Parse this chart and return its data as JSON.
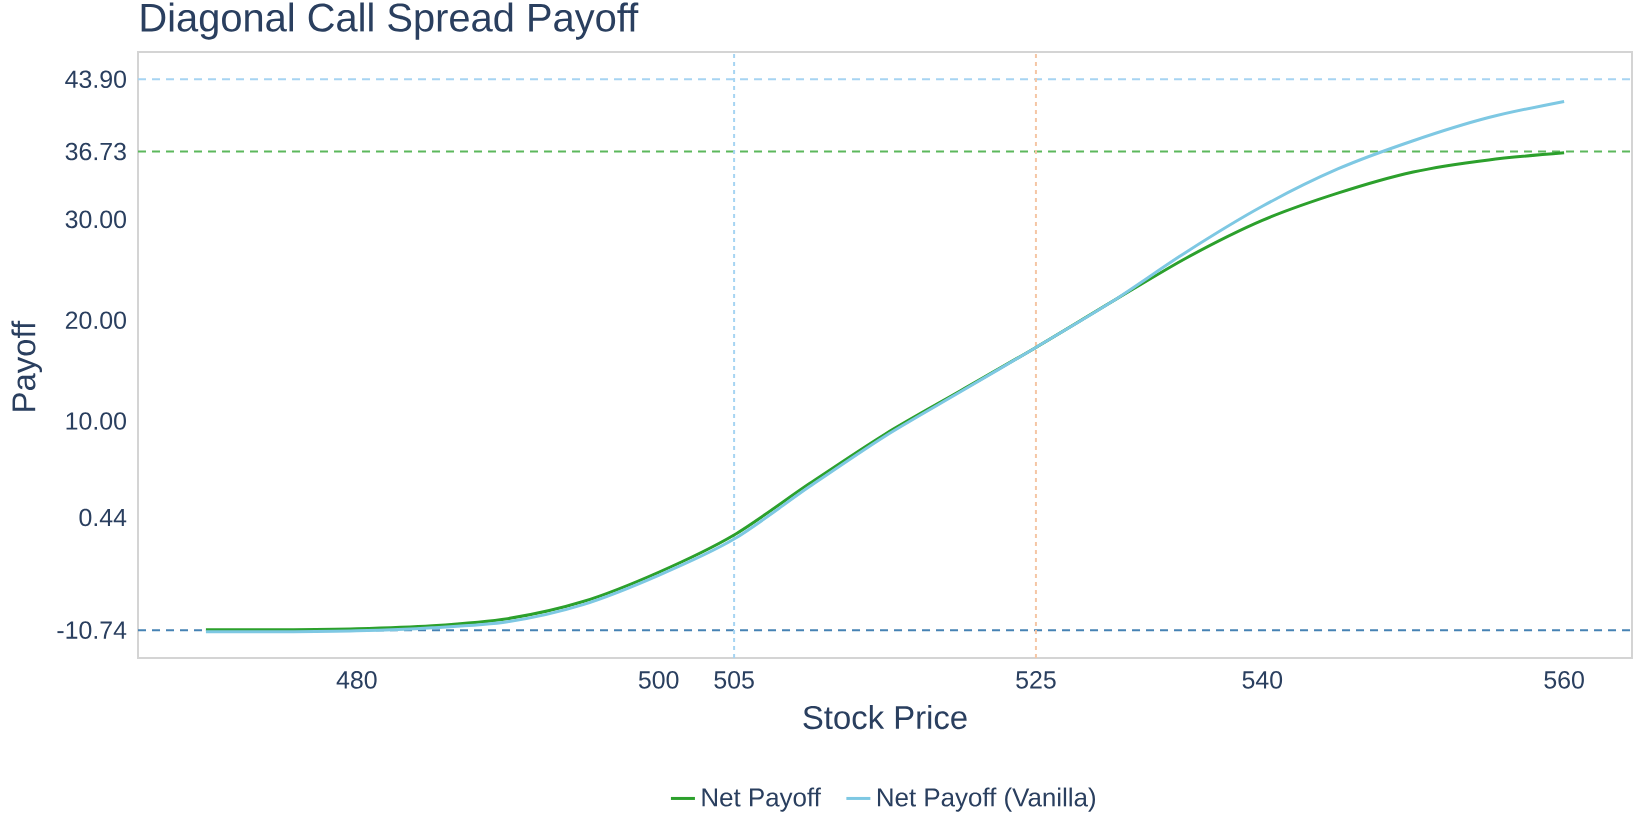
{
  "chart_data": {
    "type": "line",
    "title": "Diagonal Call Spread Payoff",
    "xlabel": "Stock Price",
    "ylabel": "Payoff",
    "x": [
      470,
      475,
      480,
      485,
      490,
      495,
      500,
      505,
      510,
      515,
      520,
      525,
      530,
      535,
      540,
      545,
      550,
      555,
      560
    ],
    "series": [
      {
        "name": "Net Payoff",
        "color": "#2ca02c",
        "values": [
          -10.7,
          -10.7,
          -10.6,
          -10.3,
          -9.6,
          -7.9,
          -5.0,
          -1.3,
          3.8,
          8.7,
          13.0,
          17.3,
          21.8,
          26.2,
          29.9,
          32.6,
          34.7,
          35.9,
          36.6
        ]
      },
      {
        "name": "Net Payoff (Vanilla)",
        "color": "#7ec8e3",
        "values": [
          -10.9,
          -10.9,
          -10.8,
          -10.5,
          -9.9,
          -8.2,
          -5.3,
          -1.7,
          3.5,
          8.5,
          12.9,
          17.3,
          21.8,
          26.8,
          31.3,
          35.0,
          37.8,
          40.1,
          41.7
        ]
      }
    ],
    "xlim": [
      465.5,
      564.5
    ],
    "ylim": [
      -13.5,
      46.6
    ],
    "xticks": [
      480,
      500,
      505,
      525,
      540,
      560
    ],
    "yticks": [
      -10.74,
      0.44,
      {
        "value": 10,
        "label": "10.00"
      },
      {
        "value": 20,
        "label": "20.00"
      },
      {
        "value": 30,
        "label": "30.00"
      },
      36.73,
      {
        "value": 43.9,
        "label": "43.90"
      }
    ],
    "ref_lines": [
      {
        "axis": "y",
        "value": 43.9,
        "color": "#a6d4f2",
        "line_style": "dashed"
      },
      {
        "axis": "y",
        "value": 36.73,
        "color": "#5cb85c",
        "line_style": "dashed"
      },
      {
        "axis": "y",
        "value": -10.74,
        "color": "#4682b4",
        "line_style": "dashed"
      },
      {
        "axis": "x",
        "value": 505,
        "color": "#a6d4f2",
        "line_style": "dotted"
      },
      {
        "axis": "x",
        "value": 525,
        "color": "#f5c6a5",
        "line_style": "dotted"
      }
    ],
    "legend": "bottom"
  }
}
